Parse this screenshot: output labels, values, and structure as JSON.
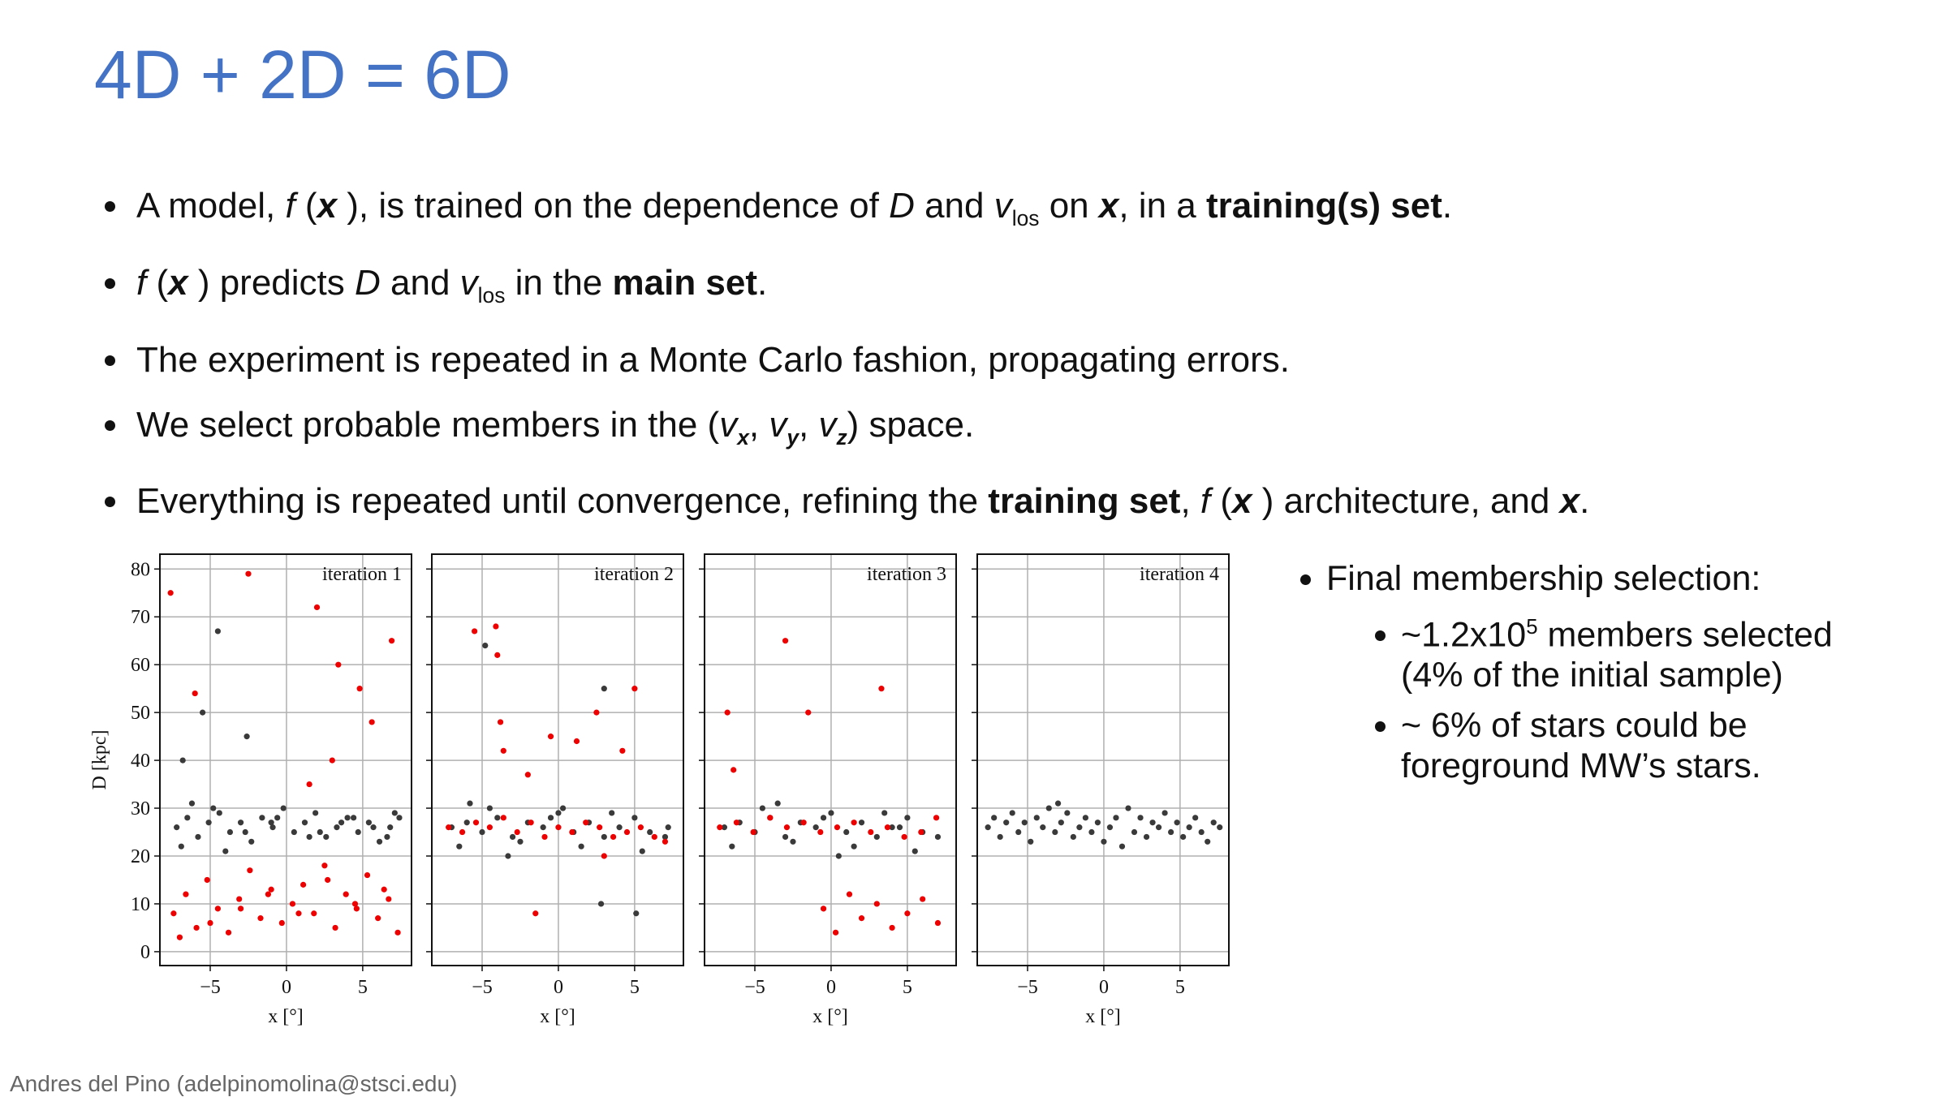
{
  "header": {
    "title": "4D + 2D = 6D"
  },
  "bullets": [
    {
      "runs": [
        {
          "t": "A model, "
        },
        {
          "t": "f",
          "s": "i"
        },
        {
          "t": " ("
        },
        {
          "t": "x",
          "s": "bi"
        },
        {
          "t": " ), is trained on the dependence of "
        },
        {
          "t": "D",
          "s": "i"
        },
        {
          "t": " and "
        },
        {
          "t": "v",
          "s": "i"
        },
        {
          "t": "los",
          "s": "sub"
        },
        {
          "t": " on "
        },
        {
          "t": "x",
          "s": "bi"
        },
        {
          "t": ", in a "
        },
        {
          "t": "training(s) set",
          "s": "b"
        },
        {
          "t": "."
        }
      ]
    },
    {
      "runs": [
        {
          "t": "f",
          "s": "i"
        },
        {
          "t": " ("
        },
        {
          "t": "x",
          "s": "bi"
        },
        {
          "t": " ) predicts "
        },
        {
          "t": "D",
          "s": "i"
        },
        {
          "t": " and "
        },
        {
          "t": "v",
          "s": "i"
        },
        {
          "t": "los",
          "s": "sub"
        },
        {
          "t": " in the "
        },
        {
          "t": "main set",
          "s": "b"
        },
        {
          "t": "."
        }
      ]
    },
    {
      "runs": [
        {
          "t": "The experiment is repeated in a Monte Carlo fashion, propagating errors."
        }
      ]
    },
    {
      "runs": [
        {
          "t": "We select probable members in the ("
        },
        {
          "t": "v",
          "s": "i"
        },
        {
          "t": "x",
          "s": "subi"
        },
        {
          "t": ", "
        },
        {
          "t": "v",
          "s": "i"
        },
        {
          "t": "y",
          "s": "subi"
        },
        {
          "t": ", "
        },
        {
          "t": "v",
          "s": "i"
        },
        {
          "t": "z",
          "s": "subi"
        },
        {
          "t": ") space."
        }
      ]
    },
    {
      "runs": [
        {
          "t": "Everything is repeated until convergence, refining the "
        },
        {
          "t": "training set",
          "s": "b"
        },
        {
          "t": ", "
        },
        {
          "t": "f",
          "s": "i"
        },
        {
          "t": " ("
        },
        {
          "t": "x",
          "s": "bi"
        },
        {
          "t": " ) architecture, and "
        },
        {
          "t": "x",
          "s": "bi"
        },
        {
          "t": "."
        }
      ]
    }
  ],
  "side": {
    "heading": "Final membership selection:",
    "items": [
      {
        "runs": [
          {
            "t": "~1.2x10"
          },
          {
            "t": "5",
            "s": "sup"
          },
          {
            "t": " members selected (4% of the initial sample)"
          }
        ]
      },
      {
        "runs": [
          {
            "t": "~ 6% of stars could be foreground MW’s stars."
          }
        ]
      }
    ]
  },
  "footer": "Andres del Pino (adelpinomolina@stsci.edu)",
  "chart_data": [
    {
      "type": "scatter",
      "annotation": "iteration 1",
      "xlabel": "x [°]",
      "ylabel": "D [kpc]",
      "xlim": [
        -8.3,
        8.2
      ],
      "ylim": [
        -2.9,
        83.1
      ],
      "xticks": [
        {
          "value": -5,
          "label": "−5"
        },
        0,
        5
      ],
      "yticks": [
        0,
        10,
        20,
        30,
        40,
        50,
        60,
        70,
        80
      ],
      "grid": true,
      "ytick_labels": true,
      "series": [
        {
          "color": "#3a3a3a",
          "x": [
            -7.2,
            -6.5,
            -5.8,
            -5.1,
            -4.4,
            -3.7,
            -3.0,
            -2.3,
            -1.6,
            -0.9,
            -0.2,
            0.5,
            1.2,
            1.9,
            2.6,
            3.3,
            4.0,
            4.7,
            5.4,
            6.1,
            6.8,
            7.4,
            -6.9,
            -4.8,
            -2.7,
            -0.6,
            1.5,
            3.6,
            5.7,
            7.1,
            -6.2,
            -4.0,
            -1.0,
            2.2,
            4.4,
            6.6,
            -5.5,
            -2.6,
            -6.8,
            -4.5
          ],
          "y": [
            26,
            28,
            24,
            27,
            29,
            25,
            27,
            23,
            28,
            26,
            30,
            25,
            27,
            29,
            24,
            26,
            28,
            25,
            27,
            23,
            26,
            28,
            22,
            30,
            25,
            28,
            24,
            27,
            26,
            29,
            31,
            21,
            27,
            25,
            28,
            24,
            50,
            45,
            40,
            67
          ]
        },
        {
          "color": "#ee0000",
          "x": [
            -7.4,
            -6.6,
            -5.9,
            -5.2,
            -4.5,
            -3.8,
            -3.1,
            -2.4,
            -1.7,
            -1.0,
            -0.3,
            0.4,
            1.1,
            1.8,
            2.5,
            3.2,
            3.9,
            4.6,
            5.3,
            6.0,
            6.7,
            7.3,
            -7.0,
            -5.0,
            -3.0,
            -1.2,
            0.8,
            2.7,
            4.5,
            6.4,
            -2.5,
            2.0,
            3.4,
            4.8,
            5.6,
            6.9,
            -6.0,
            1.5,
            3.0,
            -7.6
          ],
          "y": [
            8,
            12,
            5,
            15,
            9,
            4,
            11,
            17,
            7,
            13,
            6,
            10,
            14,
            8,
            18,
            5,
            12,
            9,
            16,
            7,
            11,
            4,
            3,
            6,
            9,
            12,
            8,
            15,
            10,
            13,
            79,
            72,
            60,
            55,
            48,
            65,
            54,
            35,
            40,
            75
          ]
        }
      ]
    },
    {
      "type": "scatter",
      "annotation": "iteration 2",
      "xlabel": "x [°]",
      "xlim": [
        -8.3,
        8.2
      ],
      "ylim": [
        -2.9,
        83.1
      ],
      "xticks": [
        {
          "value": -5,
          "label": "−5"
        },
        0,
        5
      ],
      "yticks": [
        0,
        10,
        20,
        30,
        40,
        50,
        60,
        70,
        80
      ],
      "grid": true,
      "ytick_labels": false,
      "series": [
        {
          "color": "#3a3a3a",
          "x": [
            -7,
            -6,
            -5,
            -4,
            -3,
            -2,
            -1,
            0,
            1,
            2,
            3,
            4,
            5,
            6,
            7,
            -6.5,
            -4.5,
            -2.5,
            -0.5,
            1.5,
            3.5,
            5.5,
            7.2,
            -5.8,
            -3.3,
            0.3,
            2.8,
            5.1,
            3.0,
            -4.8
          ],
          "y": [
            26,
            27,
            25,
            28,
            24,
            27,
            26,
            29,
            25,
            27,
            24,
            26,
            28,
            25,
            24,
            22,
            30,
            23,
            28,
            22,
            29,
            21,
            26,
            31,
            20,
            30,
            10,
            8,
            55,
            64
          ]
        },
        {
          "color": "#ee0000",
          "x": [
            -7.2,
            -6.3,
            -5.4,
            -4.5,
            -3.6,
            -2.7,
            -1.8,
            -0.9,
            0,
            0.9,
            1.8,
            2.7,
            3.6,
            4.5,
            5.4,
            6.3,
            7.0,
            -5.5,
            -3.8,
            -4.1,
            -3.6,
            -2.0,
            -0.5,
            1.2,
            2.5,
            4.2,
            5.0,
            -1.5,
            3.0,
            -4.0
          ],
          "y": [
            26,
            25,
            27,
            26,
            28,
            25,
            27,
            24,
            26,
            25,
            27,
            26,
            24,
            25,
            26,
            24,
            23,
            67,
            48,
            68,
            42,
            37,
            45,
            44,
            50,
            42,
            55,
            8,
            20,
            62
          ]
        }
      ]
    },
    {
      "type": "scatter",
      "annotation": "iteration 3",
      "xlabel": "x [°]",
      "xlim": [
        -8.3,
        8.2
      ],
      "ylim": [
        -2.9,
        83.1
      ],
      "xticks": [
        {
          "value": -5,
          "label": "−5"
        },
        0,
        5
      ],
      "yticks": [
        0,
        10,
        20,
        30,
        40,
        50,
        60,
        70,
        80
      ],
      "grid": true,
      "ytick_labels": false,
      "series": [
        {
          "color": "#3a3a3a",
          "x": [
            -7,
            -6,
            -5,
            -4,
            -3,
            -2,
            -1,
            0,
            1,
            2,
            3,
            4,
            5,
            6,
            7,
            -6.5,
            -4.5,
            -2.5,
            -0.5,
            1.5,
            3.5,
            5.5,
            -3.5,
            0.5,
            4.5
          ],
          "y": [
            26,
            27,
            25,
            28,
            24,
            27,
            26,
            29,
            25,
            27,
            24,
            26,
            28,
            25,
            24,
            22,
            30,
            23,
            28,
            22,
            29,
            21,
            31,
            20,
            26
          ]
        },
        {
          "color": "#ee0000",
          "x": [
            -7.3,
            -6.2,
            -5.1,
            -4.0,
            -2.9,
            -1.8,
            -0.7,
            0.4,
            1.5,
            2.6,
            3.7,
            4.8,
            5.9,
            6.9,
            -6.8,
            -6.4,
            -3.0,
            -1.5,
            -0.5,
            0.3,
            1.2,
            2.0,
            3.0,
            4.0,
            5.0,
            6.0,
            7.0,
            3.3
          ],
          "y": [
            26,
            27,
            25,
            28,
            26,
            27,
            25,
            26,
            27,
            25,
            26,
            24,
            25,
            28,
            50,
            38,
            65,
            50,
            9,
            4,
            12,
            7,
            10,
            5,
            8,
            11,
            6,
            55
          ]
        }
      ]
    },
    {
      "type": "scatter",
      "annotation": "iteration 4",
      "xlabel": "x [°]",
      "xlim": [
        -8.3,
        8.2
      ],
      "ylim": [
        -2.9,
        83.1
      ],
      "xticks": [
        {
          "value": -5,
          "label": "−5"
        },
        0,
        5
      ],
      "yticks": [
        0,
        10,
        20,
        30,
        40,
        50,
        60,
        70,
        80
      ],
      "grid": true,
      "ytick_labels": false,
      "series": [
        {
          "color": "#3a3a3a",
          "x": [
            -7.6,
            -7.2,
            -6.8,
            -6.4,
            -6.0,
            -5.6,
            -5.2,
            -4.8,
            -4.4,
            -4.0,
            -3.6,
            -3.2,
            -2.8,
            -2.4,
            -2.0,
            -1.6,
            -1.2,
            -0.8,
            -0.4,
            0,
            0.4,
            0.8,
            1.2,
            1.6,
            2.0,
            2.4,
            2.8,
            3.2,
            3.6,
            4.0,
            4.4,
            4.8,
            5.2,
            5.6,
            6.0,
            6.4,
            6.8,
            7.2,
            7.6,
            -3.0
          ],
          "y": [
            26,
            28,
            24,
            27,
            29,
            25,
            27,
            23,
            28,
            26,
            30,
            25,
            27,
            29,
            24,
            26,
            28,
            25,
            27,
            23,
            26,
            28,
            22,
            30,
            25,
            28,
            24,
            27,
            26,
            29,
            25,
            27,
            24,
            26,
            28,
            25,
            23,
            27,
            26,
            31
          ]
        }
      ]
    }
  ]
}
